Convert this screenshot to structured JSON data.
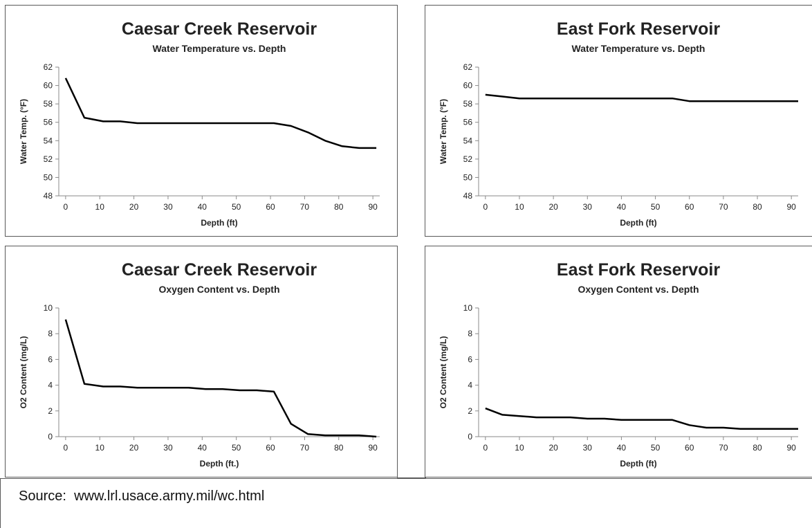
{
  "source": {
    "label": "Source:",
    "url": "www.lrl.usace.army.mil/wc.html"
  },
  "chart_data": [
    {
      "type": "line",
      "title": "Caesar Creek Reservoir",
      "subtitle": "Water Temperature vs. Depth",
      "xlabel": "Depth (ft)",
      "ylabel": "Water Temp. (°F)",
      "xlim": [
        -2,
        92
      ],
      "ylim": [
        48,
        62
      ],
      "xticks": [
        0,
        10,
        20,
        30,
        40,
        50,
        60,
        70,
        80,
        90
      ],
      "yticks": [
        48,
        50,
        52,
        54,
        56,
        58,
        60,
        62
      ],
      "grid": false,
      "series": [
        {
          "x": [
            0,
            5.5,
            11,
            16,
            21,
            26,
            31,
            36,
            41,
            46,
            51,
            56,
            61,
            66,
            71,
            76,
            81,
            86,
            91
          ],
          "y": [
            60.8,
            56.5,
            56.1,
            56.1,
            55.9,
            55.9,
            55.9,
            55.9,
            55.9,
            55.9,
            55.9,
            55.9,
            55.9,
            55.6,
            54.9,
            54.0,
            53.4,
            53.2,
            53.2
          ]
        }
      ]
    },
    {
      "type": "line",
      "title": "East Fork Reservoir",
      "subtitle": "Water Temperature vs. Depth",
      "xlabel": "Depth (ft)",
      "ylabel": "Water Temp. (°F)",
      "xlim": [
        -2,
        92
      ],
      "ylim": [
        48,
        62
      ],
      "xticks": [
        0,
        10,
        20,
        30,
        40,
        50,
        60,
        70,
        80,
        90
      ],
      "yticks": [
        48,
        50,
        52,
        54,
        56,
        58,
        60,
        62
      ],
      "grid": false,
      "series": [
        {
          "x": [
            0,
            5,
            10,
            15,
            20,
            25,
            30,
            35,
            40,
            45,
            50,
            55,
            60,
            65,
            70,
            75,
            80,
            85,
            90,
            92
          ],
          "y": [
            59.0,
            58.8,
            58.6,
            58.6,
            58.6,
            58.6,
            58.6,
            58.6,
            58.6,
            58.6,
            58.6,
            58.6,
            58.3,
            58.3,
            58.3,
            58.3,
            58.3,
            58.3,
            58.3,
            58.3
          ]
        }
      ]
    },
    {
      "type": "line",
      "title": "Caesar Creek Reservoir",
      "subtitle": "Oxygen Content vs. Depth",
      "xlabel": "Depth (ft.)",
      "ylabel": "O2 Content (mg/L)",
      "xlim": [
        -2,
        92
      ],
      "ylim": [
        0,
        10
      ],
      "xticks": [
        0,
        10,
        20,
        30,
        40,
        50,
        60,
        70,
        80,
        90
      ],
      "yticks": [
        0,
        2,
        4,
        6,
        8,
        10
      ],
      "grid": false,
      "series": [
        {
          "x": [
            0,
            5.5,
            11,
            16,
            21,
            26,
            31,
            36,
            41,
            46,
            51,
            56,
            61,
            66,
            71,
            76,
            81,
            86,
            91
          ],
          "y": [
            9.1,
            4.1,
            3.9,
            3.9,
            3.8,
            3.8,
            3.8,
            3.8,
            3.7,
            3.7,
            3.6,
            3.6,
            3.5,
            1.0,
            0.2,
            0.1,
            0.1,
            0.1,
            0.0
          ]
        }
      ]
    },
    {
      "type": "line",
      "title": "East Fork Reservoir",
      "subtitle": "Oxygen Content vs. Depth",
      "xlabel": "Depth (ft)",
      "ylabel": "O2 Content (mg/L)",
      "xlim": [
        -2,
        92
      ],
      "ylim": [
        0,
        10
      ],
      "xticks": [
        0,
        10,
        20,
        30,
        40,
        50,
        60,
        70,
        80,
        90
      ],
      "yticks": [
        0,
        2,
        4,
        6,
        8,
        10
      ],
      "grid": false,
      "series": [
        {
          "x": [
            0,
            5,
            10,
            15,
            20,
            25,
            30,
            35,
            40,
            45,
            50,
            55,
            60,
            65,
            70,
            75,
            80,
            85,
            90,
            92
          ],
          "y": [
            2.2,
            1.7,
            1.6,
            1.5,
            1.5,
            1.5,
            1.4,
            1.4,
            1.3,
            1.3,
            1.3,
            1.3,
            0.9,
            0.7,
            0.7,
            0.6,
            0.6,
            0.6,
            0.6,
            0.6
          ]
        }
      ]
    }
  ]
}
